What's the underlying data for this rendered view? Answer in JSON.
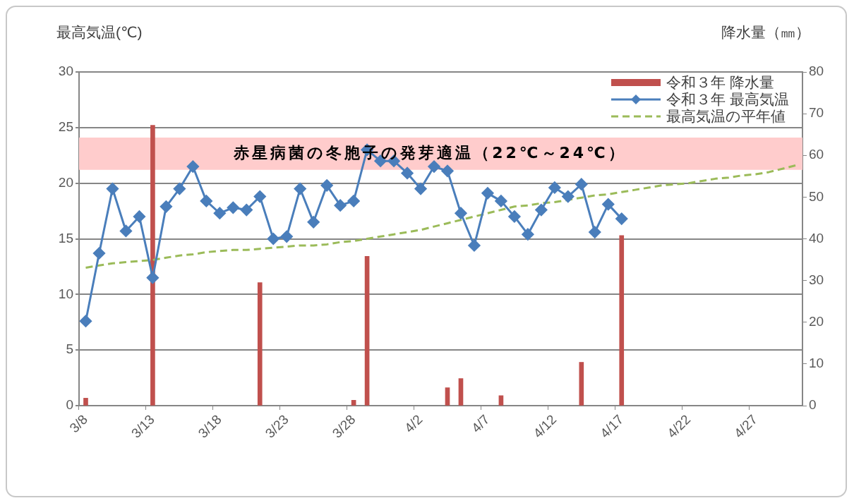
{
  "chart_data": {
    "type": "line",
    "ylabel": "最高気温(℃)",
    "y2label": "降水量（㎜）",
    "categories": [
      "3/8",
      null,
      null,
      null,
      null,
      "3/13",
      null,
      null,
      null,
      null,
      "3/18",
      null,
      null,
      null,
      null,
      "3/23",
      null,
      null,
      null,
      null,
      "3/28",
      null,
      null,
      null,
      null,
      "4/2",
      null,
      null,
      null,
      null,
      "4/7",
      null,
      null,
      null,
      null,
      "4/12",
      null,
      null,
      null,
      null,
      "4/17",
      null,
      null,
      null,
      null,
      "4/22",
      null,
      null,
      null,
      null,
      "4/27",
      null,
      null,
      null
    ],
    "series": [
      {
        "name": "令和３年 降水量",
        "type": "bar",
        "axis": "y2",
        "color": "#c0504d",
        "values": [
          1.8,
          null,
          null,
          null,
          null,
          67.2,
          null,
          null,
          null,
          null,
          null,
          null,
          null,
          29.5,
          null,
          null,
          null,
          null,
          null,
          null,
          1.3,
          35.8,
          null,
          null,
          null,
          null,
          null,
          4.3,
          6.5,
          null,
          null,
          2.4,
          null,
          null,
          null,
          null,
          null,
          10.4,
          null,
          null,
          40.8,
          null,
          null,
          null,
          null,
          null,
          null,
          null,
          null,
          null,
          null,
          null,
          null,
          null
        ]
      },
      {
        "name": "令和３年 最高気温",
        "color": "#4a7ebb",
        "marker": "diamond",
        "line_style": "solid",
        "values": [
          7.6,
          13.7,
          19.5,
          15.7,
          17.0,
          11.5,
          17.9,
          19.5,
          21.5,
          18.4,
          17.3,
          17.8,
          17.6,
          18.8,
          15.0,
          15.2,
          19.5,
          16.5,
          19.8,
          18.0,
          18.4,
          23.0,
          22.0,
          22.0,
          20.9,
          19.5,
          21.5,
          21.1,
          17.3,
          14.4,
          19.1,
          18.4,
          17.0,
          15.4,
          17.6,
          19.6,
          18.8,
          19.9,
          15.6,
          18.1,
          16.8,
          null,
          null,
          null,
          null,
          null,
          null,
          null,
          null,
          null,
          null,
          null,
          null,
          null
        ]
      },
      {
        "name": "最高気温の平年値",
        "color": "#9bbb59",
        "marker": "none",
        "line_style": "dashed",
        "values": [
          12.4,
          12.6,
          12.8,
          12.9,
          13.0,
          13.1,
          13.3,
          13.5,
          13.6,
          13.8,
          13.9,
          14.0,
          14.0,
          14.1,
          14.2,
          14.3,
          14.4,
          14.4,
          14.5,
          14.7,
          14.8,
          15.0,
          15.2,
          15.4,
          15.6,
          15.8,
          16.1,
          16.4,
          16.7,
          17.0,
          17.3,
          17.6,
          17.9,
          18.0,
          18.2,
          18.3,
          18.5,
          18.7,
          18.9,
          19.0,
          19.2,
          19.4,
          19.6,
          19.8,
          19.9,
          20.0,
          20.2,
          20.4,
          20.5,
          20.7,
          20.8,
          21.0,
          21.3,
          21.6
        ]
      }
    ],
    "ylim": [
      0,
      30
    ],
    "yticks": [
      0,
      5,
      10,
      15,
      20,
      25,
      30
    ],
    "y2lim": [
      0,
      80
    ],
    "y2ticks": [
      0,
      10,
      20,
      30,
      40,
      50,
      60,
      70,
      80
    ],
    "bands": [
      {
        "axis": "y",
        "from": 21.2,
        "to": 24.1,
        "label": "赤星病菌の冬胞子の発芽適温（22℃～24℃）",
        "color": "#ffcccc"
      }
    ],
    "grid": "y",
    "legend": "top right"
  }
}
